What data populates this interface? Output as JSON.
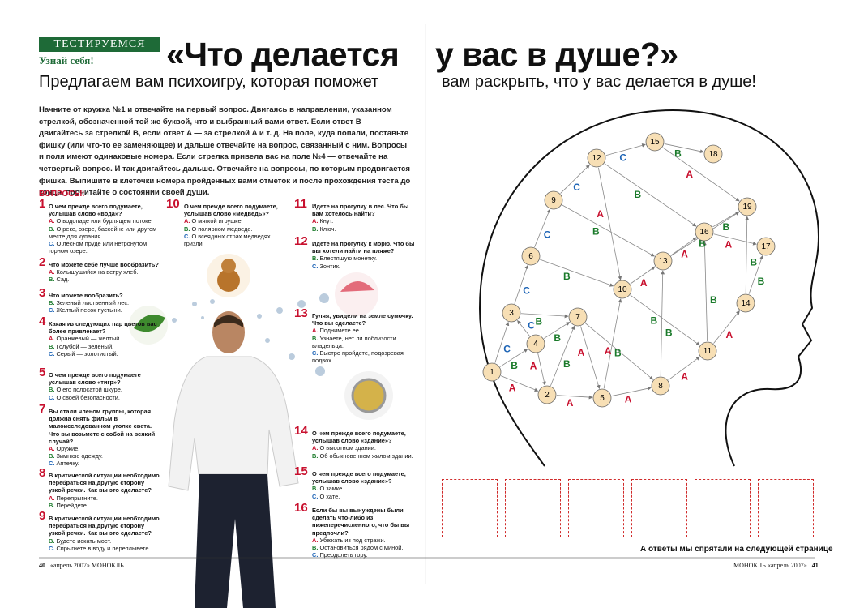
{
  "header": {
    "section": "ТЕСТИРУЕМСЯ",
    "rubric": "Узнай себя!",
    "title_left": "«Что делается",
    "title_right": "у вас в душе?»",
    "subtitle_left": "Предлагаем вам психоигру, которая поможет",
    "subtitle_right": "вам раскрыть, что у вас делается в душе!"
  },
  "intro": "Начните от кружка №1 и отвечайте на первый вопрос. Двигаясь в направлении, указанном стрелкой, обозначенной той же буквой, что и выбранный вами ответ. Если ответ B — двигайтесь за стрелкой B, если ответ A — за стрелкой A и т. д. На поле, куда попали, поставьте фишку (или что-то ее заменяющее) и дальше отвечайте на вопрос, связанный с ним. Вопросы и поля имеют одинаковые номера. Если стрелка привела вас на поле №4 — отвечайте на четвертый вопрос. И так двигайтесь дальше. Отвечайте на вопросы, по которым продвигается фишка. Выпишите в клеточки номера пройденных вами отметок и после прохождения теста до конца, прочитайте о состоянии своей души.",
  "questions_heading": "ВОПРОСЫ:",
  "questions": [
    {
      "number": "1",
      "text": "О чем прежде всего подумаете, услышав слово «вода»?",
      "options": [
        {
          "letter": "A.",
          "text": "О водопаде или бурлящем потоке."
        },
        {
          "letter": "B.",
          "text": "О реке, озере, бассейне или другом месте для купания."
        },
        {
          "letter": "C.",
          "text": "О лесном пруде или нетронутом горном озере."
        }
      ]
    },
    {
      "number": "2",
      "text": "Что можете себе лучше вообразить?",
      "options": [
        {
          "letter": "A.",
          "text": "Колышущийся на ветру хлеб."
        },
        {
          "letter": "B.",
          "text": "Сад."
        }
      ]
    },
    {
      "number": "3",
      "text": "Что можете вообразить?",
      "options": [
        {
          "letter": "B.",
          "text": "Зеленый лиственный лес."
        },
        {
          "letter": "C.",
          "text": "Желтый песок пустыни."
        }
      ]
    },
    {
      "number": "4",
      "text": "Какая из следующих пар цветов вас более привлекает?",
      "options": [
        {
          "letter": "A.",
          "text": "Оранжевый — желтый."
        },
        {
          "letter": "B.",
          "text": "Голубой — зеленый."
        },
        {
          "letter": "C.",
          "text": "Серый — золотистый."
        }
      ]
    },
    {
      "number": "5",
      "text": "О чем прежде всего подумаете услышав слово «тигр»?",
      "options": [
        {
          "letter": "B.",
          "text": "О его полосатой шкуре."
        },
        {
          "letter": "C.",
          "text": "О своей безопасности."
        }
      ]
    },
    {
      "number": "7",
      "text": "Вы стали членом группы, которая должна снять фильм в малоисследованном уголке света. Что вы возьмете с собой на всякий случай?",
      "options": [
        {
          "letter": "A.",
          "text": "Оружие."
        },
        {
          "letter": "B.",
          "text": "Зимнюю одежду."
        },
        {
          "letter": "C.",
          "text": "Аптечку."
        }
      ]
    },
    {
      "number": "8",
      "text": "В критической ситуации необходимо перебраться на другую сторону узкой речки. Как вы это сделаете?",
      "options": [
        {
          "letter": "A.",
          "text": "Перепрыгните."
        },
        {
          "letter": "B.",
          "text": "Перейдете."
        }
      ]
    },
    {
      "number": "9",
      "text": "В критической ситуации необходимо перебраться на другую сторону узкой речки. Как вы это сделаете?",
      "options": [
        {
          "letter": "B.",
          "text": "Будете искать мост."
        },
        {
          "letter": "C.",
          "text": "Спрыгнете в воду и переплывете."
        }
      ]
    },
    {
      "number": "10",
      "text": "О чем прежде всего подумаете, услышав слово «медведь»?",
      "options": [
        {
          "letter": "A.",
          "text": "О мягкой игрушке."
        },
        {
          "letter": "B.",
          "text": "О полярном медведе."
        },
        {
          "letter": "C.",
          "text": "О всеядных страх медведях гризли."
        }
      ]
    },
    {
      "number": "11",
      "text": "Идете на прогулку в лес. Что бы вам хотелось найти?",
      "options": [
        {
          "letter": "A.",
          "text": "Кнут."
        },
        {
          "letter": "B.",
          "text": "Ключ."
        }
      ]
    },
    {
      "number": "12",
      "text": "Идете на прогулку к морю. Что бы вы хотели найти на пляже?",
      "options": [
        {
          "letter": "B.",
          "text": "Блестящую монетку."
        },
        {
          "letter": "C.",
          "text": "Зонтик."
        }
      ]
    },
    {
      "number": "13",
      "text": "Гуляя, увидели на земле сумочку. Что вы сделаете?",
      "options": [
        {
          "letter": "A.",
          "text": "Поднимете ее."
        },
        {
          "letter": "B.",
          "text": "Узнаете, нет ли поблизости владельца."
        },
        {
          "letter": "C.",
          "text": "Быстро пройдете, подозревая подвох."
        }
      ]
    },
    {
      "number": "14",
      "text": "О чем прежде всего подумаете, услышав слово «здание»?",
      "options": [
        {
          "letter": "A.",
          "text": "О высотном здании."
        },
        {
          "letter": "B.",
          "text": "Об обыкновенном жилом здании."
        }
      ]
    },
    {
      "number": "15",
      "text": "О чем прежде всего подумаете, услышав слово «здание»?",
      "options": [
        {
          "letter": "B.",
          "text": "О замке."
        },
        {
          "letter": "C.",
          "text": "О хате."
        }
      ]
    },
    {
      "number": "16",
      "text": "Если бы вы вынуждены были сделать что-либо из нижеперечисленного, что бы вы предпочли?",
      "options": [
        {
          "letter": "A.",
          "text": "Убежать из под стражи."
        },
        {
          "letter": "B.",
          "text": "Остановиться рядом с миной."
        },
        {
          "letter": "C.",
          "text": "Преодолеть гору."
        }
      ]
    }
  ],
  "diagram": {
    "nodes": [
      "1",
      "2",
      "3",
      "4",
      "5",
      "6",
      "7",
      "8",
      "9",
      "10",
      "11",
      "12",
      "13",
      "14",
      "15",
      "16",
      "17",
      "18",
      "19"
    ],
    "edges": [
      {
        "from": "1",
        "to": "2",
        "label": "A"
      },
      {
        "from": "1",
        "to": "4",
        "label": "B"
      },
      {
        "from": "1",
        "to": "3",
        "label": "C"
      },
      {
        "from": "3",
        "to": "6",
        "label": "C"
      },
      {
        "from": "3",
        "to": "7",
        "label": "B"
      },
      {
        "from": "4",
        "to": "7",
        "label": "B"
      },
      {
        "from": "4",
        "to": "2",
        "label": "A"
      },
      {
        "from": "4",
        "to": "3",
        "label": "C"
      },
      {
        "from": "2",
        "to": "5",
        "label": "A"
      },
      {
        "from": "2",
        "to": "7",
        "label": "B"
      },
      {
        "from": "5",
        "to": "8",
        "label": "A"
      },
      {
        "from": "5",
        "to": "10",
        "label": "B"
      },
      {
        "from": "7",
        "to": "5",
        "label": "A"
      },
      {
        "from": "7",
        "to": "8",
        "label": "A"
      },
      {
        "from": "6",
        "to": "10",
        "label": "B"
      },
      {
        "from": "6",
        "to": "9",
        "label": "C"
      },
      {
        "from": "9",
        "to": "12",
        "label": "C"
      },
      {
        "from": "9",
        "to": "13",
        "label": "B"
      },
      {
        "from": "12",
        "to": "15",
        "label": "C"
      },
      {
        "from": "12",
        "to": "16",
        "label": "B"
      },
      {
        "from": "12",
        "to": "10",
        "label": "A"
      },
      {
        "from": "15",
        "to": "18",
        "label": "B"
      },
      {
        "from": "15",
        "to": "19",
        "label": "A"
      },
      {
        "from": "10",
        "to": "13",
        "label": "A"
      },
      {
        "from": "10",
        "to": "11",
        "label": "B"
      },
      {
        "from": "8",
        "to": "11",
        "label": "A"
      },
      {
        "from": "8",
        "to": "13",
        "label": "B"
      },
      {
        "from": "11",
        "to": "14",
        "label": "A"
      },
      {
        "from": "11",
        "to": "16",
        "label": "B"
      },
      {
        "from": "13",
        "to": "16",
        "label": "A"
      },
      {
        "from": "13",
        "to": "19",
        "label": "B"
      },
      {
        "from": "14",
        "to": "17",
        "label": "B"
      },
      {
        "from": "14",
        "to": "19",
        "label": "B"
      },
      {
        "from": "16",
        "to": "17",
        "label": "A"
      },
      {
        "from": "16",
        "to": "19",
        "label": "B"
      }
    ]
  },
  "answer_note": "А ответы мы спрятали на следующей странице",
  "footer": {
    "left_page": "40",
    "left_issue": "«апрель 2007»",
    "left_magazine": "МОНОКЛЬ",
    "right_magazine": "МОНОКЛЬ",
    "right_issue": "«апрель 2007»",
    "right_page": "41"
  }
}
